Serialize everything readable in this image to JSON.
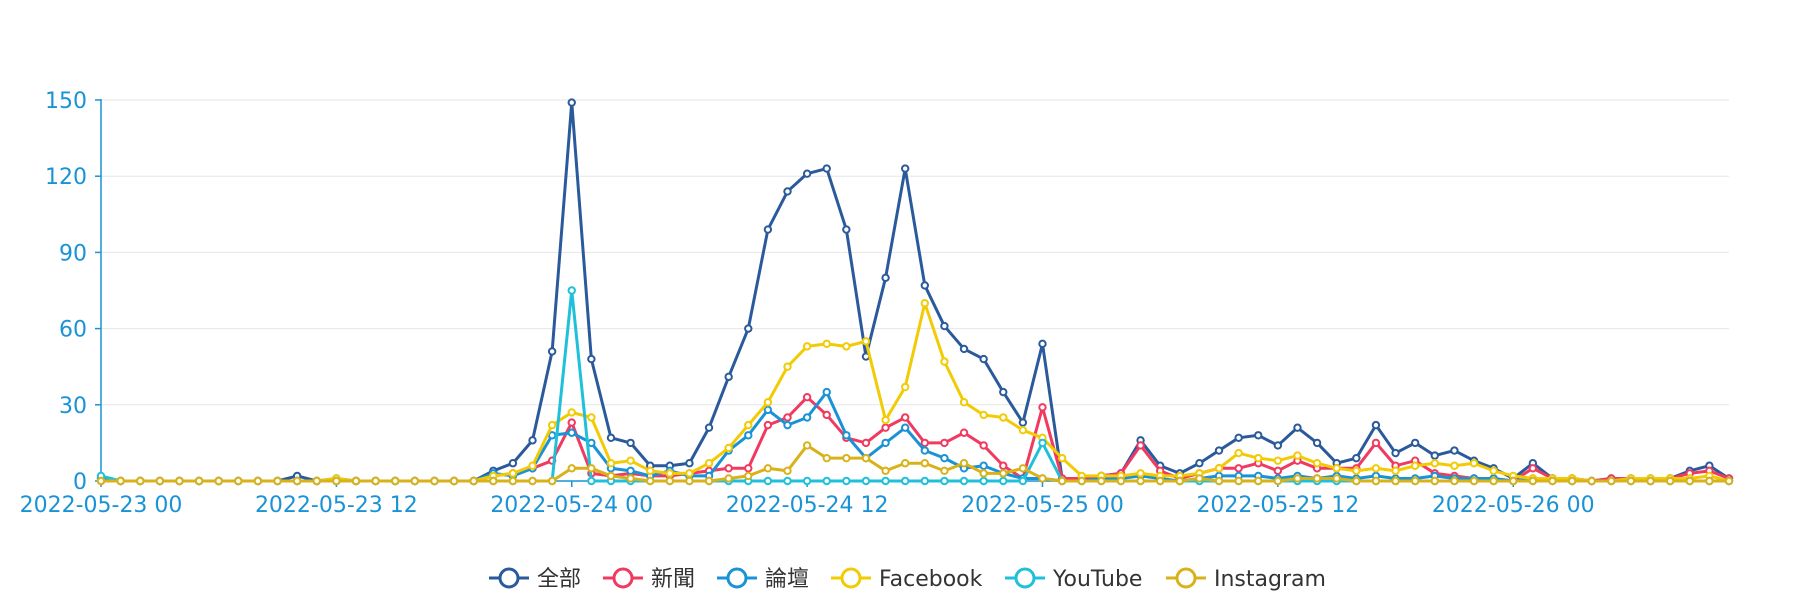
{
  "chart_data": {
    "type": "line",
    "x_start": "2022-05-23 00:00",
    "x_step_hours": 1,
    "x_tick_labels": [
      "2022-05-23 00",
      "2022-05-23 12",
      "2022-05-24 00",
      "2022-05-24 12",
      "2022-05-25 00",
      "2022-05-25 12",
      "2022-05-26 00"
    ],
    "y_ticks": [
      0,
      30,
      60,
      90,
      120,
      150
    ],
    "ylim": [
      0,
      150
    ],
    "grid": true,
    "legend_position": "bottom",
    "series": [
      {
        "name": "全部",
        "color": "#2a5a9c",
        "values": [
          1,
          0,
          0,
          0,
          0,
          0,
          0,
          0,
          0,
          0,
          2,
          0,
          1,
          0,
          0,
          0,
          0,
          0,
          0,
          0,
          4,
          7,
          16,
          51,
          149,
          48,
          17,
          15,
          6,
          6,
          7,
          21,
          41,
          60,
          99,
          114,
          121,
          123,
          99,
          49,
          80,
          123,
          77,
          61,
          52,
          48,
          35,
          23,
          54,
          1,
          1,
          2,
          3,
          16,
          6,
          3,
          7,
          12,
          17,
          18,
          14,
          21,
          15,
          7,
          9,
          22,
          11,
          15,
          10,
          12,
          8,
          5,
          1,
          7,
          1,
          1,
          0,
          1,
          1,
          1,
          1,
          4,
          6,
          1
        ]
      },
      {
        "name": "新聞",
        "color": "#f03a5f",
        "values": [
          0,
          0,
          0,
          0,
          0,
          0,
          0,
          0,
          0,
          0,
          0,
          0,
          0,
          0,
          0,
          0,
          0,
          0,
          0,
          0,
          2,
          3,
          5,
          8,
          23,
          3,
          2,
          3,
          2,
          2,
          3,
          4,
          5,
          5,
          22,
          25,
          33,
          26,
          17,
          15,
          21,
          25,
          15,
          15,
          19,
          14,
          6,
          1,
          29,
          1,
          1,
          2,
          3,
          14,
          4,
          1,
          3,
          5,
          5,
          7,
          4,
          8,
          5,
          5,
          5,
          15,
          6,
          8,
          3,
          2,
          1,
          1,
          0,
          5,
          1,
          1,
          0,
          1,
          1,
          0,
          1,
          3,
          4,
          1
        ]
      },
      {
        "name": "論壇",
        "color": "#1a93d6",
        "values": [
          1,
          0,
          0,
          0,
          0,
          0,
          0,
          0,
          0,
          0,
          0,
          0,
          0,
          0,
          0,
          0,
          0,
          0,
          0,
          0,
          3,
          2,
          5,
          18,
          19,
          15,
          5,
          4,
          2,
          4,
          2,
          2,
          12,
          18,
          28,
          22,
          25,
          35,
          18,
          9,
          15,
          21,
          12,
          9,
          5,
          6,
          3,
          1,
          1,
          0,
          0,
          1,
          1,
          2,
          1,
          0,
          1,
          2,
          2,
          2,
          1,
          2,
          1,
          2,
          1,
          2,
          1,
          1,
          2,
          1,
          1,
          1,
          0,
          1,
          1,
          0,
          0,
          0,
          0,
          0,
          0,
          0,
          0,
          0
        ]
      },
      {
        "name": "Facebook",
        "color": "#f2cb05",
        "values": [
          0,
          0,
          0,
          0,
          0,
          0,
          0,
          0,
          0,
          0,
          0,
          0,
          1,
          0,
          0,
          0,
          0,
          0,
          0,
          0,
          2,
          3,
          6,
          22,
          27,
          25,
          7,
          8,
          4,
          3,
          3,
          7,
          13,
          22,
          31,
          45,
          53,
          54,
          53,
          55,
          24,
          37,
          70,
          47,
          31,
          26,
          25,
          20,
          17,
          9,
          2,
          2,
          2,
          3,
          2,
          2,
          3,
          5,
          11,
          9,
          8,
          10,
          7,
          5,
          4,
          5,
          4,
          6,
          7,
          6,
          7,
          4,
          2,
          1,
          1,
          1,
          0,
          0,
          1,
          1,
          1,
          1,
          2,
          0
        ]
      },
      {
        "name": "YouTube",
        "color": "#1fc0d9",
        "values": [
          2,
          0,
          0,
          0,
          0,
          0,
          0,
          0,
          0,
          0,
          0,
          0,
          0,
          0,
          0,
          0,
          0,
          0,
          0,
          0,
          0,
          0,
          0,
          0,
          75,
          0,
          0,
          0,
          0,
          0,
          0,
          0,
          0,
          0,
          0,
          0,
          0,
          0,
          0,
          0,
          0,
          0,
          0,
          0,
          0,
          0,
          0,
          0,
          15,
          0,
          0,
          0,
          0,
          0,
          0,
          0,
          0,
          0,
          0,
          0,
          0,
          0,
          0,
          0,
          0,
          0,
          0,
          0,
          0,
          0,
          0,
          0,
          0,
          0,
          0,
          0,
          0,
          0,
          0,
          0,
          0,
          0,
          0,
          0
        ]
      },
      {
        "name": "Instagram",
        "color": "#d9b21a",
        "values": [
          0,
          0,
          0,
          0,
          0,
          0,
          0,
          0,
          0,
          0,
          0,
          0,
          0,
          0,
          0,
          0,
          0,
          0,
          0,
          0,
          0,
          0,
          0,
          0,
          5,
          5,
          2,
          1,
          0,
          0,
          0,
          0,
          1,
          2,
          5,
          4,
          14,
          9,
          9,
          9,
          4,
          7,
          7,
          4,
          7,
          3,
          3,
          5,
          1,
          0,
          0,
          0,
          0,
          0,
          0,
          0,
          1,
          0,
          0,
          0,
          0,
          1,
          1,
          1,
          0,
          0,
          0,
          0,
          0,
          0,
          0,
          0,
          0,
          0,
          0,
          0,
          0,
          0,
          0,
          0,
          0,
          0,
          0,
          0
        ]
      }
    ]
  }
}
